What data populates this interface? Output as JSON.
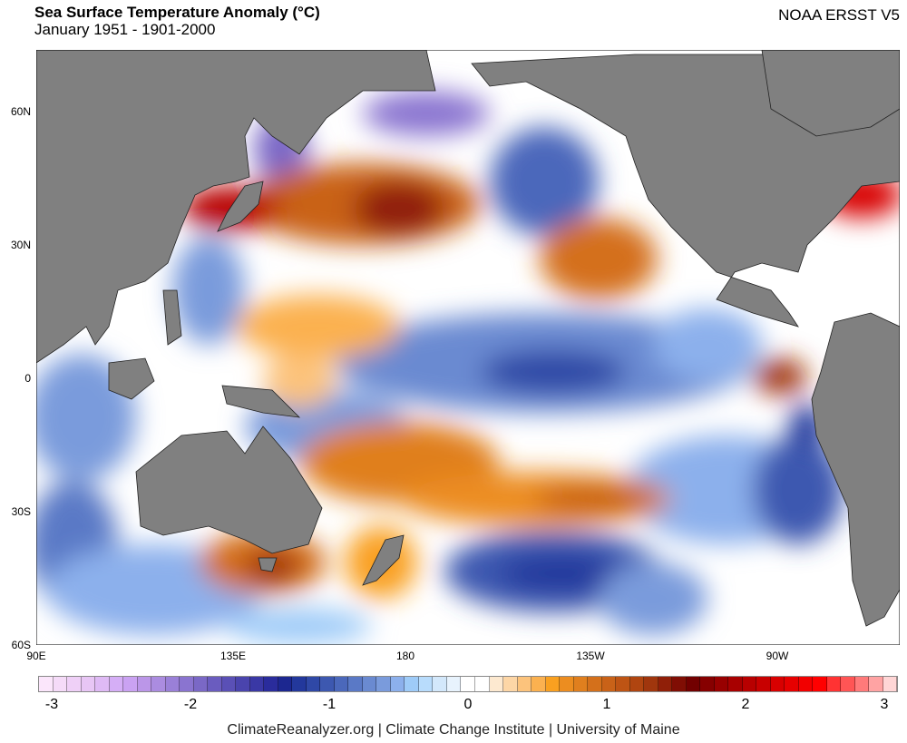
{
  "header": {
    "title": "Sea Surface Temperature Anomaly (°C)",
    "subtitle": "January 1951 - 1901-2000",
    "dataset": "NOAA ERSST V5"
  },
  "axes": {
    "lat_labels": [
      "60N",
      "30N",
      "0",
      "30S",
      "60S"
    ],
    "lon_labels": [
      "90E",
      "135E",
      "180",
      "135W",
      "90W"
    ]
  },
  "colorbar": {
    "ticks": [
      "-3",
      "-2",
      "-1",
      "0",
      "1",
      "2",
      "3"
    ],
    "colors": [
      "#fbe6fb",
      "#f5dbf8",
      "#efd0f7",
      "#e8c6f5",
      "#dfbaf5",
      "#d5aef6",
      "#caa2f2",
      "#bb96e8",
      "#ab8ce0",
      "#9a80d8",
      "#8a74d0",
      "#7a68c6",
      "#6a5cbf",
      "#5a50b6",
      "#4a44ad",
      "#3a38a5",
      "#2a2c9c",
      "#1c2790",
      "#23389c",
      "#2f48a6",
      "#3d58b0",
      "#4b68bb",
      "#5a79c6",
      "#6a8ad1",
      "#7a9bdc",
      "#8cb0ec",
      "#9ecbf8",
      "#b8dcfc",
      "#d3e8fb",
      "#e8f3fd",
      "#ffffff",
      "#ffffff",
      "#fde9d0",
      "#fdd6a6",
      "#fcc37c",
      "#fbb150",
      "#f9a020",
      "#ec8d20",
      "#e07f1e",
      "#d4701b",
      "#c96218",
      "#be5414",
      "#b04510",
      "#a0360d",
      "#901f08",
      "#800e04",
      "#720000",
      "#860000",
      "#980000",
      "#a80000",
      "#b80000",
      "#c80000",
      "#d80000",
      "#e60000",
      "#f20000",
      "#ff0000",
      "#ff3333",
      "#ff5555",
      "#ff7a7a",
      "#ffa3a3",
      "#ffd6d6"
    ]
  },
  "footer": {
    "credit": "ClimateReanalyzer.org | Climate Change Institute | University of Maine"
  }
}
